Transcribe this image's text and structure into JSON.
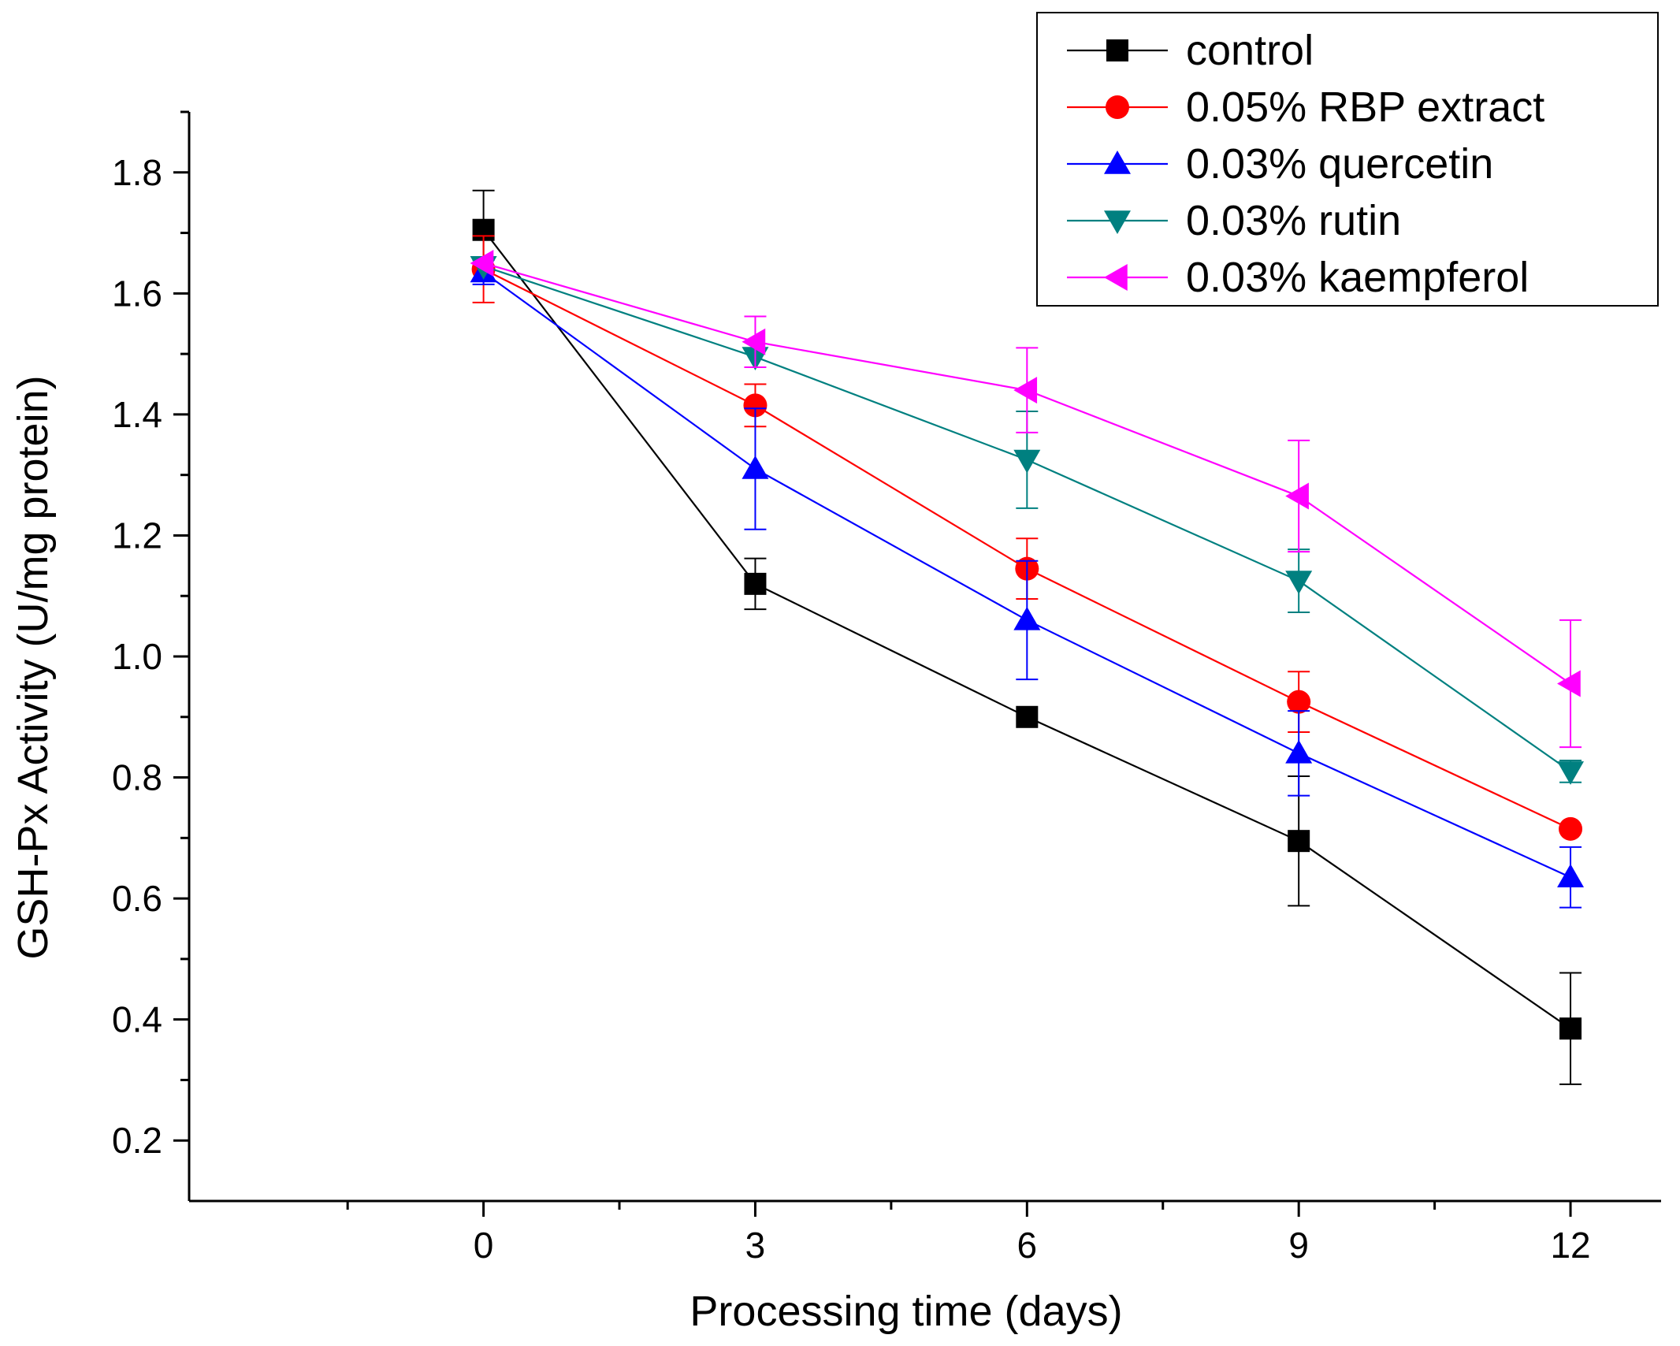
{
  "chart_data": {
    "type": "line",
    "title": "",
    "xlabel": "Processing time (days)",
    "ylabel": "GSH-Px Activity (U/mg protein)",
    "xlim": [
      -3.25,
      13.0
    ],
    "ylim": [
      0.1,
      1.9
    ],
    "x": [
      0,
      3,
      6,
      9,
      12
    ],
    "x_ticks": [
      0,
      3,
      6,
      9,
      12
    ],
    "x_tick_labels": [
      "0",
      "3",
      "6",
      "9",
      "12"
    ],
    "y_ticks": [
      0.2,
      0.4,
      0.6,
      0.8,
      1.0,
      1.2,
      1.4,
      1.6,
      1.8
    ],
    "y_tick_labels": [
      "0.2",
      "0.4",
      "0.6",
      "0.8",
      "1.0",
      "1.2",
      "1.4",
      "1.6",
      "1.8"
    ],
    "legend_position": "top-right",
    "series": [
      {
        "name": "control",
        "color": "#000000",
        "marker": "square",
        "values": [
          1.705,
          1.12,
          0.9,
          0.695,
          0.385
        ],
        "errors": [
          0.065,
          0.042,
          0.0,
          0.107,
          0.092
        ]
      },
      {
        "name": "0.05% RBP extract",
        "color": "#ff0000",
        "marker": "circle",
        "values": [
          1.64,
          1.415,
          1.145,
          0.925,
          0.715
        ],
        "errors": [
          0.055,
          0.035,
          0.05,
          0.05,
          0.0
        ]
      },
      {
        "name": "0.03% quercetin",
        "color": "#0000ff",
        "marker": "triangle-up",
        "values": [
          1.635,
          1.31,
          1.06,
          0.84,
          0.635
        ],
        "errors": [
          0.02,
          0.1,
          0.098,
          0.07,
          0.05
        ]
      },
      {
        "name": "0.03% rutin",
        "color": "#008080",
        "marker": "triangle-down",
        "values": [
          1.645,
          1.495,
          1.325,
          1.125,
          0.81
        ],
        "errors": [
          0.0,
          0.0,
          0.08,
          0.052,
          0.018
        ]
      },
      {
        "name": "0.03% kaempferol",
        "color": "#ff00ff",
        "marker": "triangle-left",
        "values": [
          1.65,
          1.52,
          1.44,
          1.265,
          0.955
        ],
        "errors": [
          0.0,
          0.042,
          0.07,
          0.092,
          0.105
        ]
      }
    ]
  }
}
